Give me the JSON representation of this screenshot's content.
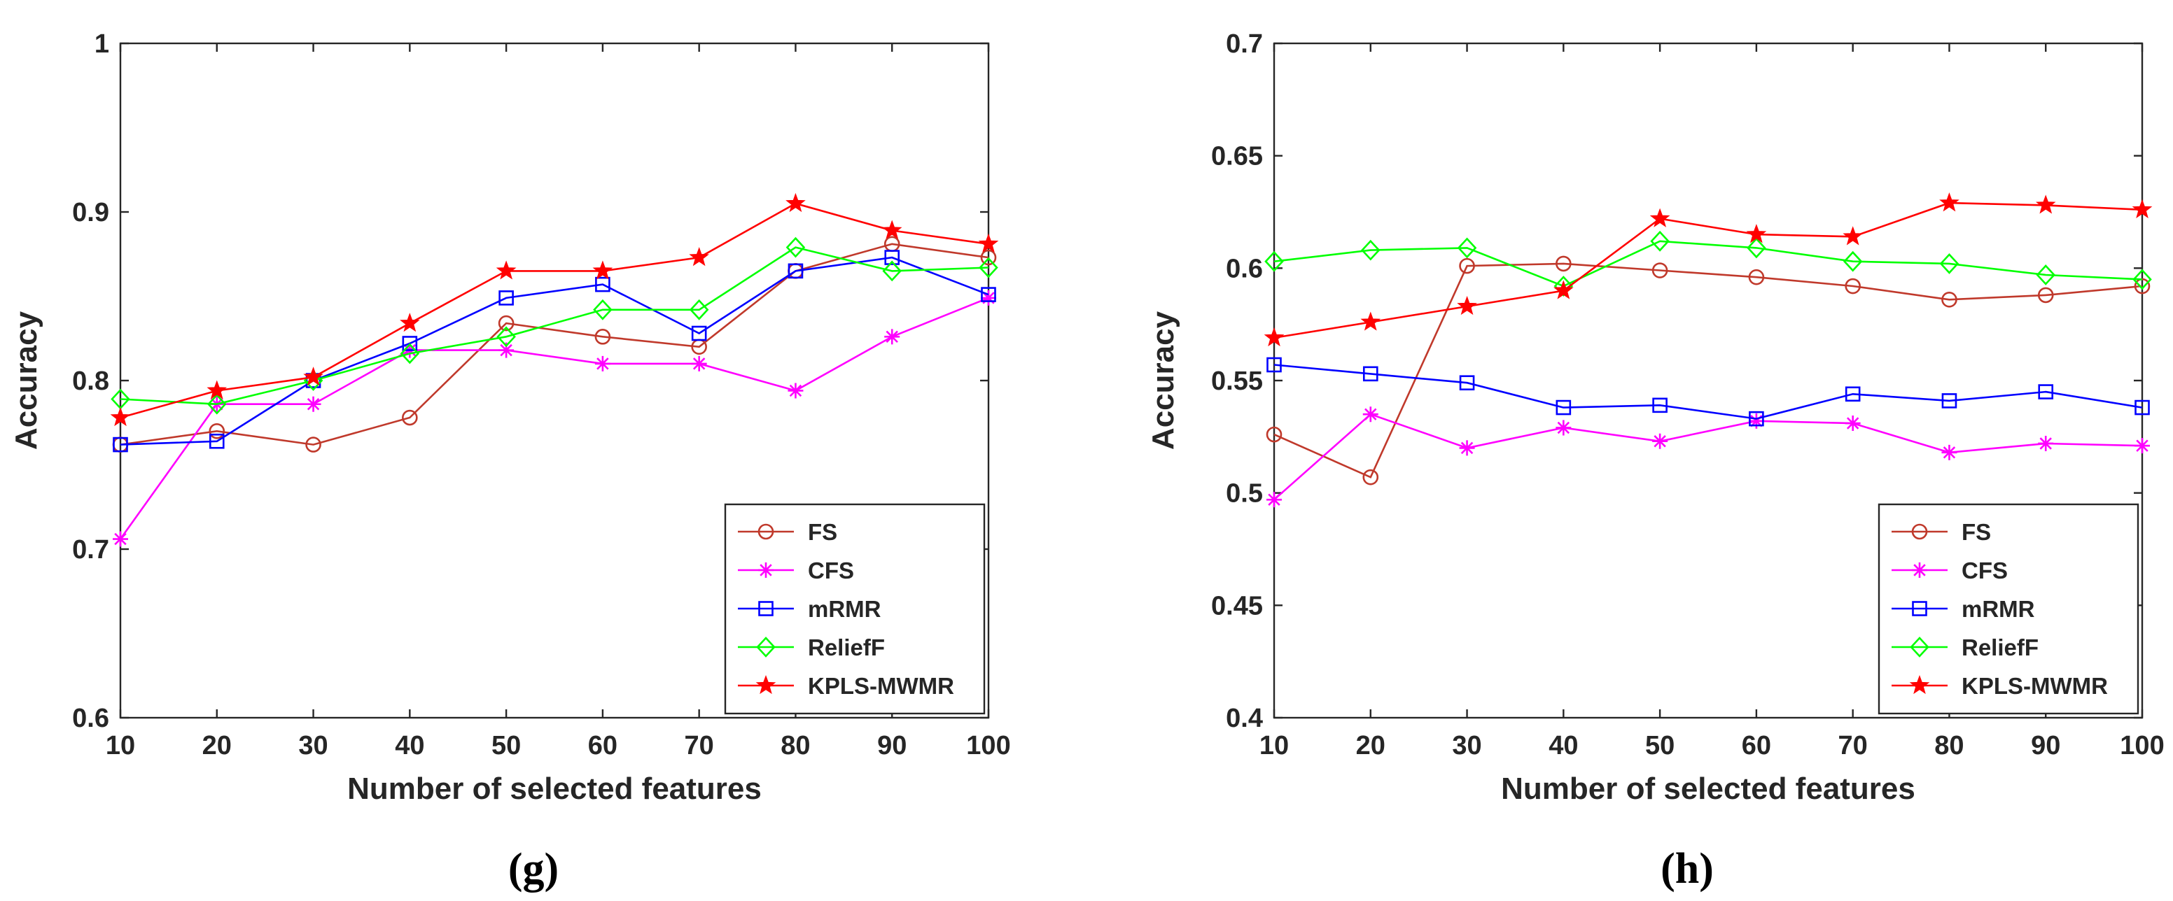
{
  "chart_data": [
    {
      "type": "line",
      "panel_label": "(g)",
      "xlabel": "Number of selected features",
      "ylabel": "Accuracy",
      "x": [
        10,
        20,
        30,
        40,
        50,
        60,
        70,
        80,
        90,
        100
      ],
      "xticks": [
        "10",
        "20",
        "30",
        "40",
        "50",
        "60",
        "70",
        "80",
        "90",
        "100"
      ],
      "yticks": [
        "0.6",
        "0.7",
        "0.8",
        "0.9",
        "1"
      ],
      "xlim": [
        10,
        100
      ],
      "ylim": [
        0.6,
        1.0
      ],
      "legend_position": "bottom-right",
      "series": [
        {
          "name": "FS",
          "color": "#C0392B",
          "marker": "circle",
          "values": [
            0.762,
            0.77,
            0.762,
            0.778,
            0.834,
            0.826,
            0.82,
            0.865,
            0.881,
            0.873
          ]
        },
        {
          "name": "CFS",
          "color": "#FF00FF",
          "marker": "asterisk",
          "values": [
            0.706,
            0.786,
            0.786,
            0.818,
            0.818,
            0.81,
            0.81,
            0.794,
            0.826,
            0.849
          ]
        },
        {
          "name": "mRMR",
          "color": "#0000FF",
          "marker": "square",
          "values": [
            0.762,
            0.764,
            0.8,
            0.822,
            0.849,
            0.857,
            0.828,
            0.865,
            0.873,
            0.851
          ]
        },
        {
          "name": "ReliefF",
          "color": "#00FF00",
          "marker": "diamond",
          "values": [
            0.789,
            0.786,
            0.8,
            0.816,
            0.826,
            0.842,
            0.842,
            0.879,
            0.865,
            0.867
          ]
        },
        {
          "name": "KPLS-MWMR",
          "color": "#FF0000",
          "marker": "star",
          "values": [
            0.778,
            0.794,
            0.802,
            0.834,
            0.865,
            0.865,
            0.873,
            0.905,
            0.889,
            0.881
          ]
        }
      ]
    },
    {
      "type": "line",
      "panel_label": "(h)",
      "xlabel": "Number of selected features",
      "ylabel": "Accuracy",
      "x": [
        10,
        20,
        30,
        40,
        50,
        60,
        70,
        80,
        90,
        100
      ],
      "xticks": [
        "10",
        "20",
        "30",
        "40",
        "50",
        "60",
        "70",
        "80",
        "90",
        "100"
      ],
      "yticks": [
        "0.4",
        "0.45",
        "0.5",
        "0.55",
        "0.6",
        "0.65",
        "0.7"
      ],
      "xlim": [
        10,
        100
      ],
      "ylim": [
        0.4,
        0.7
      ],
      "legend_position": "bottom-right",
      "series": [
        {
          "name": "FS",
          "color": "#C0392B",
          "marker": "circle",
          "values": [
            0.526,
            0.507,
            0.601,
            0.602,
            0.599,
            0.596,
            0.592,
            0.586,
            0.588,
            0.592
          ]
        },
        {
          "name": "CFS",
          "color": "#FF00FF",
          "marker": "asterisk",
          "values": [
            0.497,
            0.535,
            0.52,
            0.529,
            0.523,
            0.532,
            0.531,
            0.518,
            0.522,
            0.521
          ]
        },
        {
          "name": "mRMR",
          "color": "#0000FF",
          "marker": "square",
          "values": [
            0.557,
            0.553,
            0.549,
            0.538,
            0.539,
            0.533,
            0.544,
            0.541,
            0.545,
            0.538
          ]
        },
        {
          "name": "ReliefF",
          "color": "#00FF00",
          "marker": "diamond",
          "values": [
            0.603,
            0.608,
            0.609,
            0.592,
            0.612,
            0.609,
            0.603,
            0.602,
            0.597,
            0.595
          ]
        },
        {
          "name": "KPLS-MWMR",
          "color": "#FF0000",
          "marker": "star",
          "values": [
            0.569,
            0.576,
            0.583,
            0.59,
            0.622,
            0.615,
            0.614,
            0.629,
            0.628,
            0.626
          ]
        }
      ]
    }
  ]
}
